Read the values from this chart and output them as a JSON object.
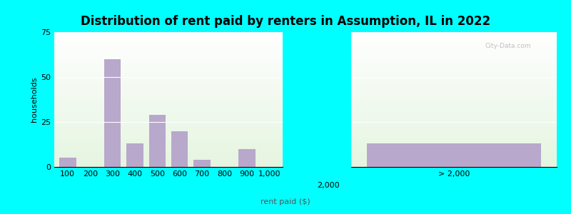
{
  "title": "Distribution of rent paid by renters in Assumption, IL in 2022",
  "xlabel": "rent paid ($)",
  "ylabel": "households",
  "bar_color": "#b8a8cc",
  "last_bar_color": "#b8a8cc",
  "outer_bg": "#00ffff",
  "plot_bg_color": "#eef5e8",
  "ylim": [
    0,
    75
  ],
  "yticks": [
    0,
    25,
    50,
    75
  ],
  "bars": [
    {
      "label": "100",
      "value": 5
    },
    {
      "label": "200",
      "value": 0
    },
    {
      "label": "300",
      "value": 60
    },
    {
      "label": "400",
      "value": 13
    },
    {
      "label": "500",
      "value": 29
    },
    {
      "label": "600",
      "value": 20
    },
    {
      "label": "700",
      "value": 4
    },
    {
      "label": "800",
      "value": 0
    },
    {
      "label": "900",
      "value": 10
    },
    {
      "label": "1,000",
      "value": 0
    }
  ],
  "last_bar": {
    "label": "> 2,000",
    "value": 13
  },
  "mid_label": "2,000",
  "title_fontsize": 12,
  "axis_fontsize": 8,
  "ylabel_fontsize": 8,
  "watermark": "City-Data.com"
}
